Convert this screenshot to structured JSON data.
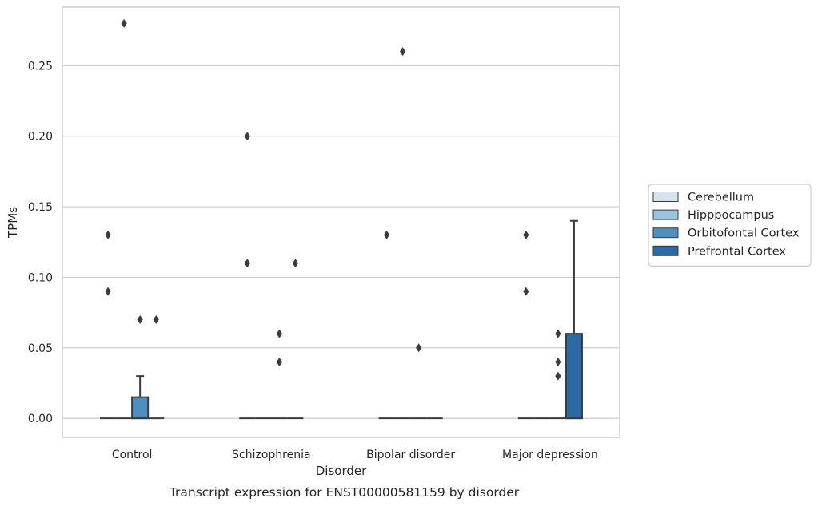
{
  "chart_data": {
    "type": "box",
    "title": "",
    "caption": "Transcript expression for ENST00000581159 by disorder",
    "xlabel": "Disorder",
    "ylabel": "TPMs",
    "ylim": [
      -0.0135,
      0.2915
    ],
    "yticks": [
      0.0,
      0.05,
      0.1,
      0.15,
      0.2,
      0.25
    ],
    "ytick_labels": [
      "0.00",
      "0.05",
      "0.10",
      "0.15",
      "0.20",
      "0.25"
    ],
    "grid": true,
    "legend_position": "right",
    "categories": [
      "Control",
      "Schizophrenia",
      "Bipolar disorder",
      "Major depression"
    ],
    "series": [
      {
        "name": "Cerebellum",
        "color": "#d6e4f0",
        "boxes": [
          {
            "q1": 0,
            "median": 0,
            "q3": 0,
            "whisker_low": 0,
            "whisker_high": 0,
            "outliers": [
              0.09,
              0.13
            ]
          },
          {
            "q1": 0,
            "median": 0,
            "q3": 0,
            "whisker_low": 0,
            "whisker_high": 0,
            "outliers": [
              0.11,
              0.2
            ]
          },
          {
            "q1": 0,
            "median": 0,
            "q3": 0,
            "whisker_low": 0,
            "whisker_high": 0,
            "outliers": [
              0.13
            ]
          },
          {
            "q1": 0,
            "median": 0,
            "q3": 0,
            "whisker_low": 0,
            "whisker_high": 0,
            "outliers": [
              0.09,
              0.13
            ]
          }
        ]
      },
      {
        "name": "Hipppocampus",
        "color": "#9ac3dd",
        "boxes": [
          {
            "q1": 0,
            "median": 0,
            "q3": 0,
            "whisker_low": 0,
            "whisker_high": 0,
            "outliers": [
              0.28
            ]
          },
          {
            "q1": 0,
            "median": 0,
            "q3": 0,
            "whisker_low": 0,
            "whisker_high": 0,
            "outliers": []
          },
          {
            "q1": 0,
            "median": 0,
            "q3": 0,
            "whisker_low": 0,
            "whisker_high": 0,
            "outliers": [
              0.26
            ]
          },
          {
            "q1": 0,
            "median": 0,
            "q3": 0,
            "whisker_low": 0,
            "whisker_high": 0,
            "outliers": []
          }
        ]
      },
      {
        "name": "Orbitofontal Cortex",
        "color": "#4e8fbf",
        "boxes": [
          {
            "q1": 0,
            "median": 0,
            "q3": 0.015,
            "whisker_low": 0,
            "whisker_high": 0.03,
            "outliers": [
              0.07
            ]
          },
          {
            "q1": 0,
            "median": 0,
            "q3": 0,
            "whisker_low": 0,
            "whisker_high": 0,
            "outliers": [
              0.04,
              0.06
            ]
          },
          {
            "q1": 0,
            "median": 0,
            "q3": 0,
            "whisker_low": 0,
            "whisker_high": 0,
            "outliers": [
              0.05
            ]
          },
          {
            "q1": 0,
            "median": 0,
            "q3": 0,
            "whisker_low": 0,
            "whisker_high": 0,
            "outliers": [
              0.03,
              0.04,
              0.06
            ]
          }
        ]
      },
      {
        "name": "Prefrontal Cortex",
        "color": "#2d6aa3",
        "boxes": [
          {
            "q1": 0,
            "median": 0,
            "q3": 0,
            "whisker_low": 0,
            "whisker_high": 0,
            "outliers": [
              0.07
            ]
          },
          {
            "q1": 0,
            "median": 0,
            "q3": 0,
            "whisker_low": 0,
            "whisker_high": 0,
            "outliers": [
              0.11
            ]
          },
          {
            "q1": 0,
            "median": 0,
            "q3": 0,
            "whisker_low": 0,
            "whisker_high": 0,
            "outliers": []
          },
          {
            "q1": 0,
            "median": 0,
            "q3": 0.06,
            "whisker_low": 0,
            "whisker_high": 0.14,
            "outliers": []
          }
        ]
      }
    ],
    "colors": {
      "grid": "#cccccc",
      "frame": "#cccccc",
      "stroke": "#3b3b3b",
      "text": "#262626"
    }
  }
}
